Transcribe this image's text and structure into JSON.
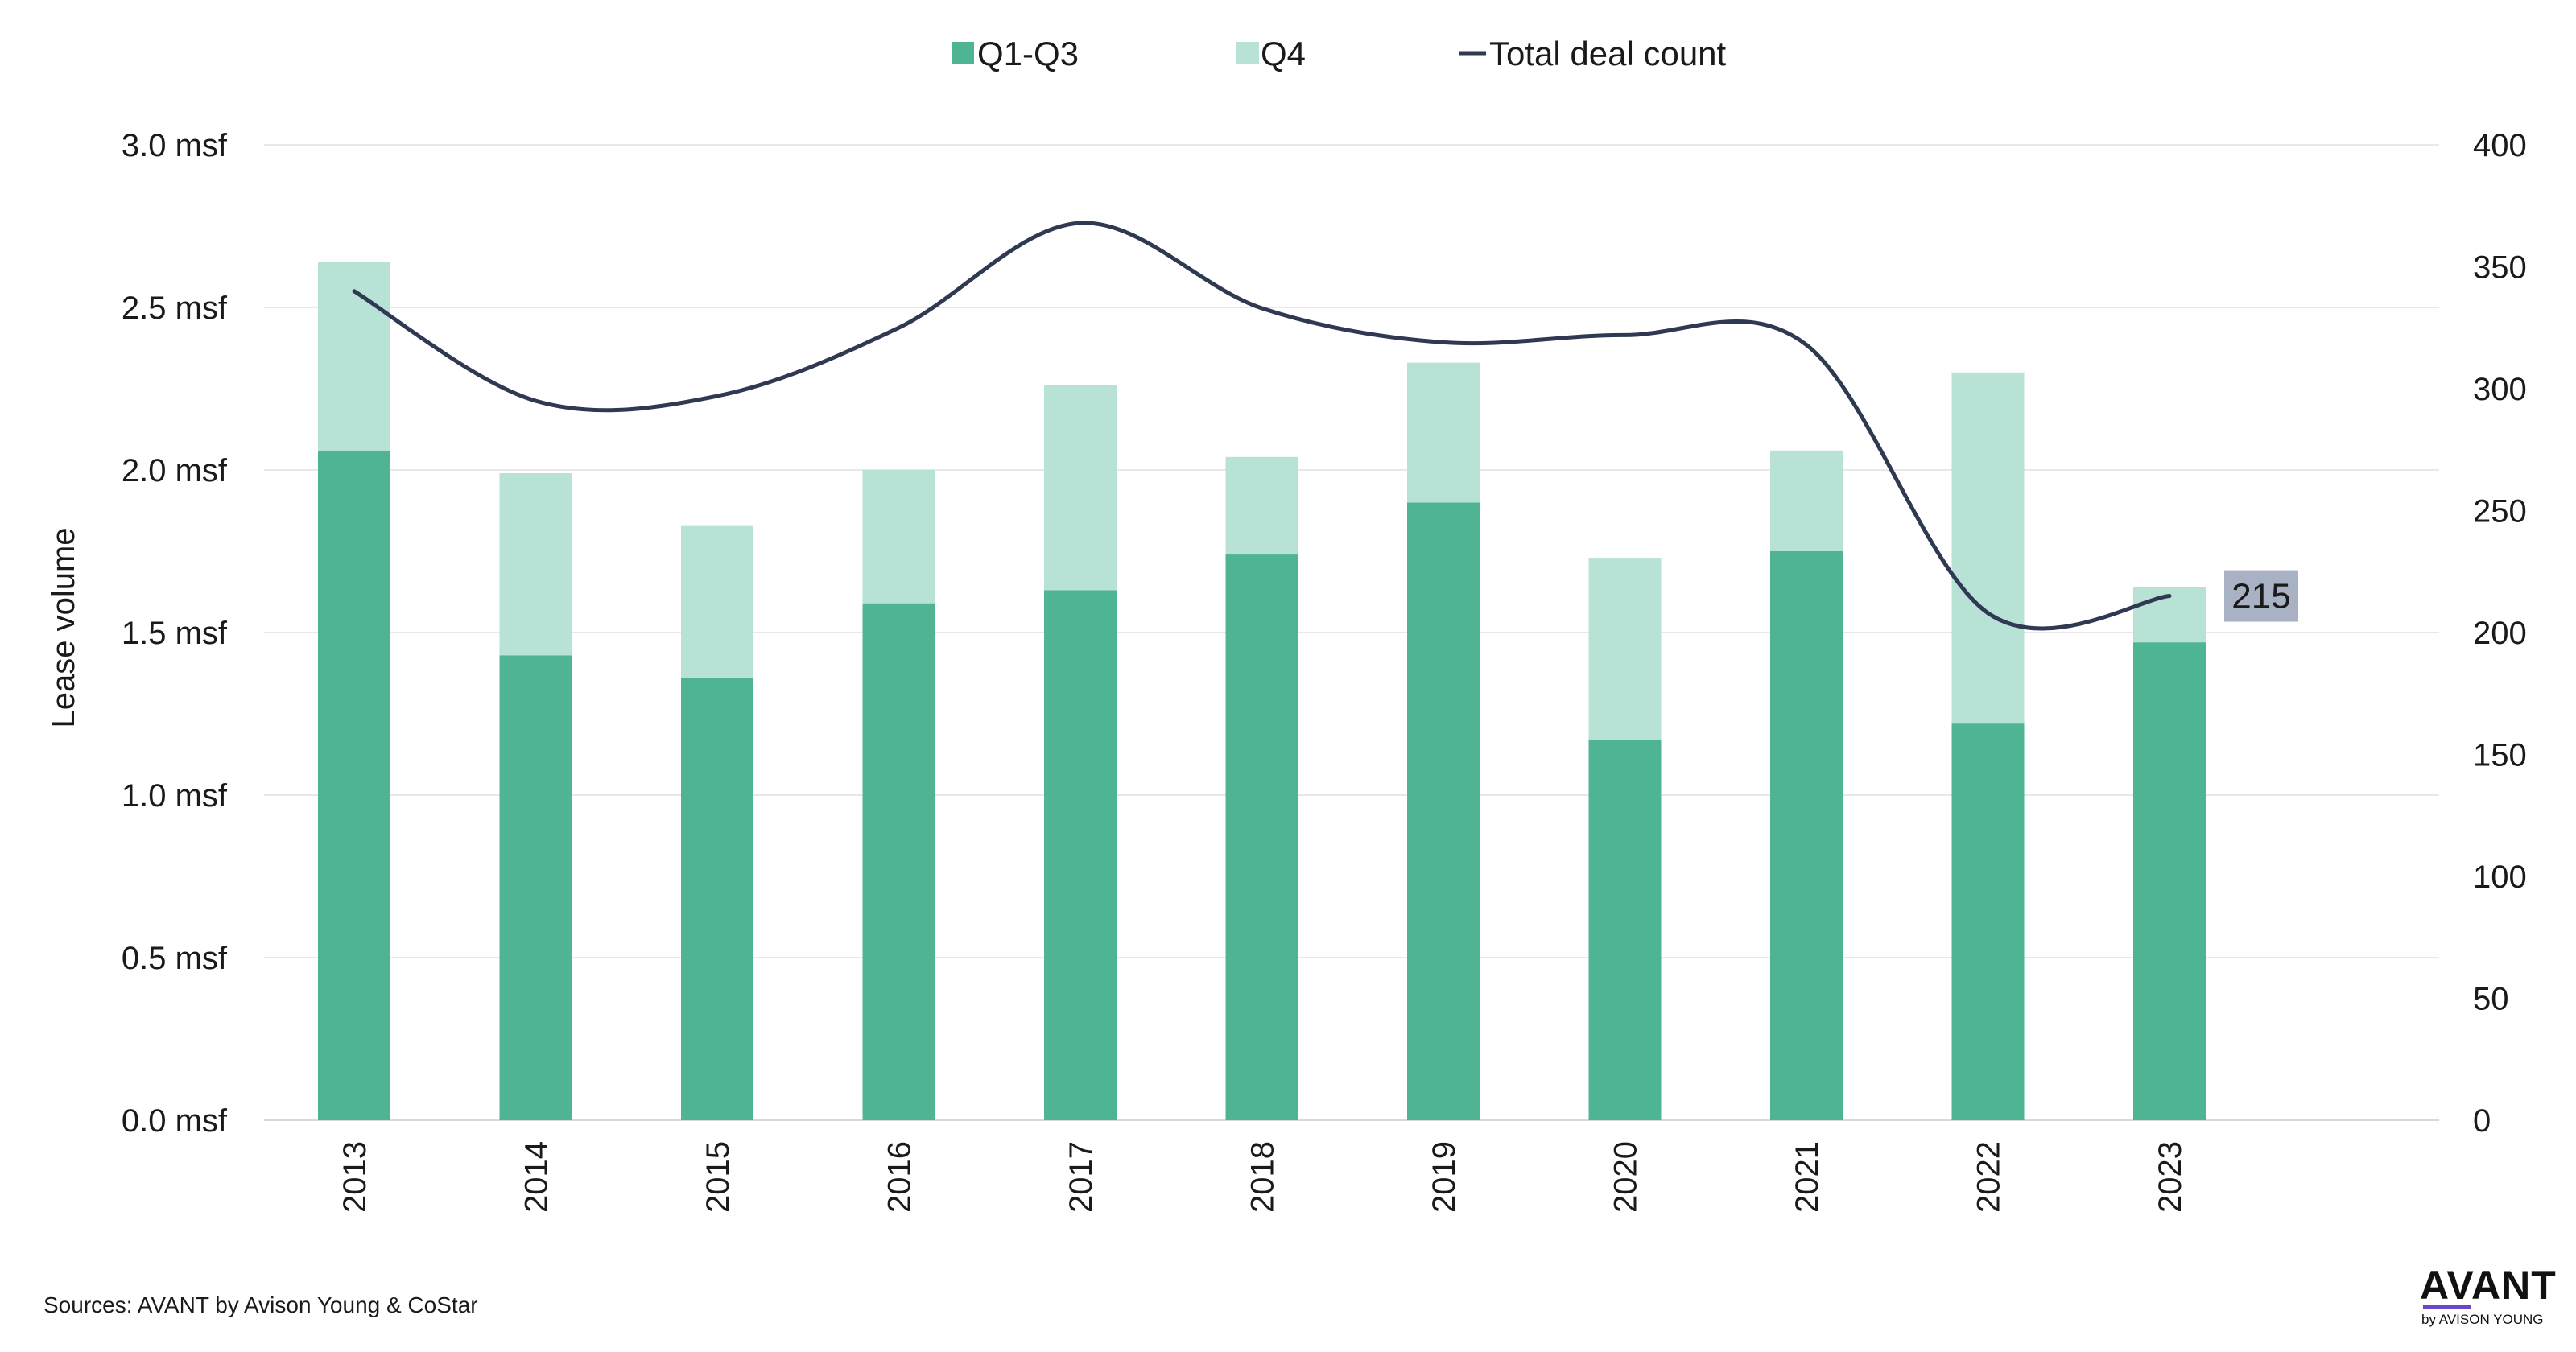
{
  "chart_data": {
    "type": "bar",
    "stacked": true,
    "categories": [
      "2013",
      "2014",
      "2015",
      "2016",
      "2017",
      "2018",
      "2019",
      "2020",
      "2021",
      "2022",
      "2023"
    ],
    "series": [
      {
        "name": "Q1-Q3",
        "values": [
          2.06,
          1.43,
          1.36,
          1.59,
          1.63,
          1.74,
          1.9,
          1.17,
          1.75,
          1.22,
          1.47
        ],
        "color": "#4fb494",
        "axis": "left"
      },
      {
        "name": "Q4",
        "values": [
          0.58,
          0.56,
          0.47,
          0.41,
          0.63,
          0.3,
          0.43,
          0.56,
          0.31,
          1.08,
          0.17
        ],
        "color": "#b8e2d6",
        "axis": "left"
      },
      {
        "name": "Total deal count",
        "type": "line",
        "values": [
          340,
          295,
          297,
          325,
          368,
          333,
          319,
          322,
          318,
          208,
          215
        ],
        "color": "#2f3a52",
        "axis": "right"
      }
    ],
    "ylabel": "Lease volume",
    "ylim": [
      0,
      3.0
    ],
    "yticks": [
      "0.0 msf",
      "0.5 msf",
      "1.0 msf",
      "1.5 msf",
      "2.0 msf",
      "2.5 msf",
      "3.0 msf"
    ],
    "y2lim": [
      0,
      400
    ],
    "y2ticks": [
      "0",
      "50",
      "100",
      "150",
      "200",
      "250",
      "300",
      "350",
      "400"
    ],
    "legend": "top-center",
    "grid": true,
    "callout": {
      "label": "215",
      "series": "Total deal count",
      "category": "2023",
      "color": "#a9b2c4"
    }
  },
  "footer": {
    "source": "Sources: AVANT by Avison Young & CoStar",
    "logo_main": "AVANT",
    "logo_sub": "by AVISON YOUNG"
  }
}
